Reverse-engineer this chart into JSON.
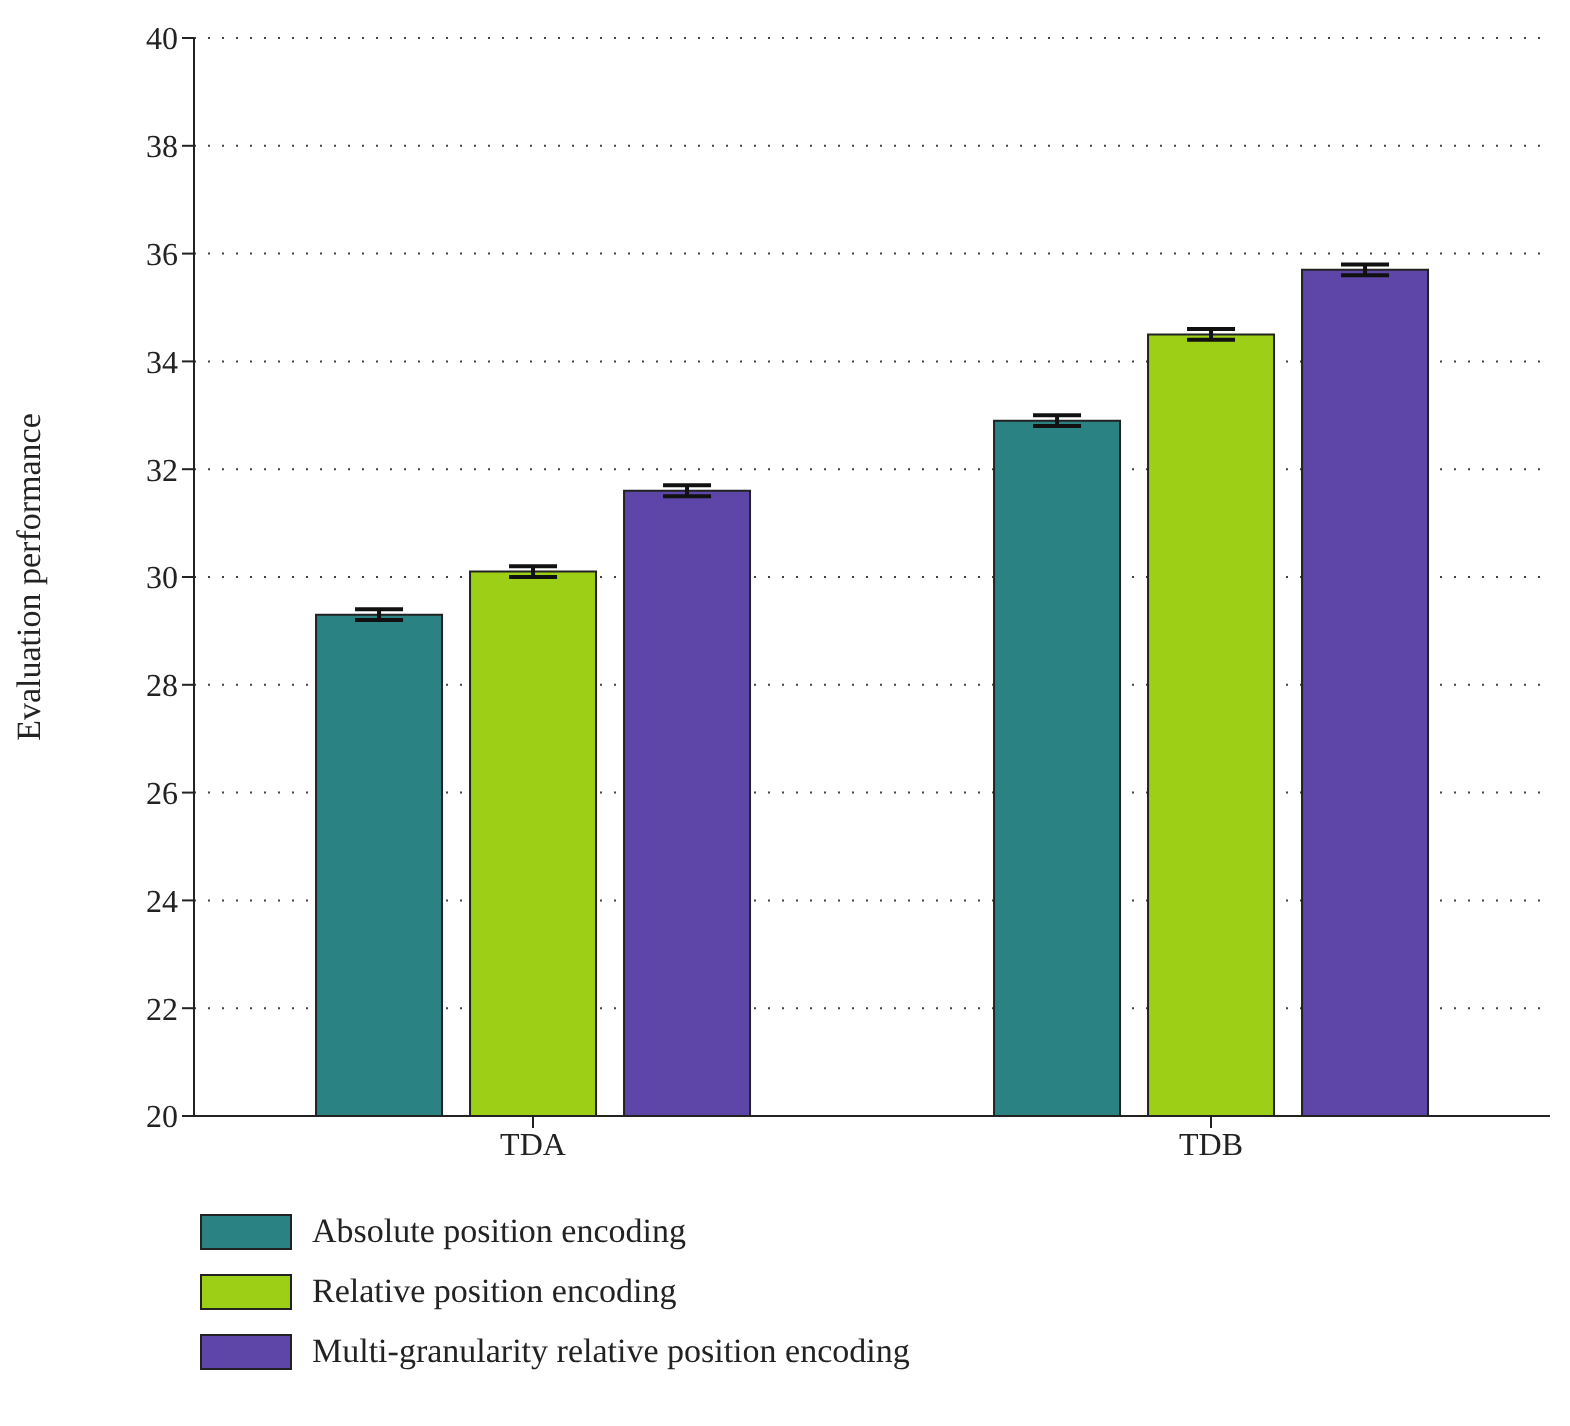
{
  "chart_data": {
    "type": "bar",
    "ylabel": "Evaluation performance",
    "categories": [
      "TDA",
      "TDB"
    ],
    "series": [
      {
        "name": "Absolute position encoding",
        "color": "#2b8283",
        "values": [
          29.3,
          32.9
        ],
        "errors": [
          0.1,
          0.1
        ]
      },
      {
        "name": "Relative position encoding",
        "color": "#9ccf16",
        "values": [
          30.1,
          34.5
        ],
        "errors": [
          0.1,
          0.1
        ]
      },
      {
        "name": "Multi-granularity relative position encoding",
        "color": "#5e45a8",
        "values": [
          31.6,
          35.7
        ],
        "errors": [
          0.1,
          0.1
        ]
      }
    ],
    "ylim": [
      20,
      40
    ],
    "yticks": [
      20,
      22,
      24,
      26,
      28,
      30,
      32,
      34,
      36,
      38,
      40
    ],
    "grid": "y",
    "legend": "bottom"
  }
}
